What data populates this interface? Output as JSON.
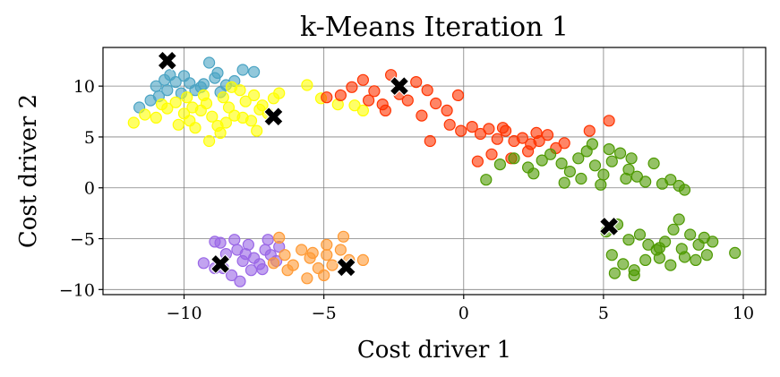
{
  "chart_data": {
    "type": "scatter",
    "title": "k-Means Iteration 1",
    "xlabel": "Cost driver 1",
    "ylabel": "Cost driver 2",
    "xlim": [
      -12.9,
      10.8
    ],
    "ylim": [
      -10.5,
      13.8
    ],
    "xticks": [
      -10,
      -5,
      0,
      5,
      10
    ],
    "yticks": [
      -10,
      -5,
      0,
      5,
      10
    ],
    "xtick_labels": [
      "−10",
      "−5",
      "0",
      "5",
      "10"
    ],
    "ytick_labels": [
      "−10",
      "−5",
      "0",
      "5",
      "10"
    ],
    "grid": true,
    "legend": "none",
    "clusters": [
      {
        "color": "#4aa3c3",
        "points": [
          [
            -11.6,
            7.9
          ],
          [
            -11.2,
            8.6
          ],
          [
            -10.9,
            9.0
          ],
          [
            -10.7,
            10.6
          ],
          [
            -10.5,
            11.1
          ],
          [
            -10.3,
            10.4
          ],
          [
            -10.0,
            11.0
          ],
          [
            -9.8,
            10.3
          ],
          [
            -9.6,
            9.6
          ],
          [
            -9.3,
            10.2
          ],
          [
            -9.1,
            12.3
          ],
          [
            -8.9,
            10.8
          ],
          [
            -8.7,
            9.4
          ],
          [
            -8.5,
            10.1
          ],
          [
            -8.2,
            10.5
          ],
          [
            -7.9,
            11.6
          ],
          [
            -7.5,
            11.4
          ],
          [
            -10.1,
            9.3
          ],
          [
            -9.4,
            9.9
          ],
          [
            -8.8,
            11.3
          ],
          [
            -11.0,
            10.0
          ],
          [
            -10.6,
            9.6
          ]
        ]
      },
      {
        "color": "#ffff00",
        "points": [
          [
            -11.8,
            6.4
          ],
          [
            -11.4,
            7.2
          ],
          [
            -11.0,
            6.9
          ],
          [
            -10.6,
            7.8
          ],
          [
            -10.3,
            8.4
          ],
          [
            -10.0,
            7.3
          ],
          [
            -9.8,
            6.6
          ],
          [
            -9.6,
            5.9
          ],
          [
            -9.4,
            7.6
          ],
          [
            -9.2,
            8.3
          ],
          [
            -9.0,
            7.0
          ],
          [
            -8.8,
            6.1
          ],
          [
            -8.6,
            8.9
          ],
          [
            -8.4,
            7.9
          ],
          [
            -8.2,
            7.1
          ],
          [
            -8.0,
            9.6
          ],
          [
            -7.8,
            8.5
          ],
          [
            -7.6,
            6.6
          ],
          [
            -7.4,
            5.6
          ],
          [
            -7.2,
            8.1
          ],
          [
            -7.0,
            7.3
          ],
          [
            -6.8,
            8.8
          ],
          [
            -6.6,
            9.3
          ],
          [
            -9.9,
            8.9
          ],
          [
            -9.3,
            9.1
          ],
          [
            -8.7,
            5.4
          ],
          [
            -8.3,
            9.9
          ],
          [
            -7.9,
            6.9
          ],
          [
            -7.5,
            9.1
          ],
          [
            -9.1,
            4.6
          ],
          [
            -10.2,
            6.2
          ],
          [
            -5.6,
            10.1
          ],
          [
            -5.1,
            8.8
          ],
          [
            -4.5,
            8.2
          ],
          [
            -3.9,
            8.1
          ],
          [
            -3.6,
            7.6
          ],
          [
            -8.5,
            6.4
          ],
          [
            -9.7,
            7.9
          ],
          [
            -10.8,
            8.2
          ],
          [
            -7.3,
            7.7
          ]
        ]
      },
      {
        "color": "#ff3300",
        "points": [
          [
            -4.9,
            8.9
          ],
          [
            -4.4,
            9.1
          ],
          [
            -4.0,
            9.9
          ],
          [
            -3.6,
            10.6
          ],
          [
            -3.2,
            9.5
          ],
          [
            -2.9,
            8.2
          ],
          [
            -2.6,
            11.1
          ],
          [
            -2.3,
            9.2
          ],
          [
            -2.0,
            8.6
          ],
          [
            -1.7,
            10.4
          ],
          [
            -1.3,
            9.6
          ],
          [
            -1.0,
            8.3
          ],
          [
            -0.6,
            7.6
          ],
          [
            -0.2,
            9.1
          ],
          [
            -2.8,
            7.6
          ],
          [
            -3.4,
            8.6
          ],
          [
            -1.5,
            7.1
          ],
          [
            -1.2,
            4.6
          ],
          [
            -0.5,
            6.2
          ],
          [
            -0.1,
            5.6
          ],
          [
            0.3,
            6.0
          ],
          [
            0.6,
            5.3
          ],
          [
            0.9,
            5.8
          ],
          [
            1.2,
            4.8
          ],
          [
            1.5,
            5.6
          ],
          [
            1.8,
            4.6
          ],
          [
            2.1,
            4.9
          ],
          [
            2.4,
            4.3
          ],
          [
            2.7,
            4.6
          ],
          [
            3.0,
            5.2
          ],
          [
            3.3,
            3.9
          ],
          [
            3.6,
            4.4
          ],
          [
            1.0,
            3.3
          ],
          [
            1.7,
            2.9
          ],
          [
            2.3,
            3.6
          ],
          [
            0.5,
            2.6
          ],
          [
            4.5,
            5.6
          ],
          [
            5.2,
            6.6
          ],
          [
            1.4,
            5.9
          ],
          [
            2.6,
            5.4
          ]
        ]
      },
      {
        "color": "#4d9900",
        "points": [
          [
            1.3,
            2.3
          ],
          [
            1.8,
            2.9
          ],
          [
            2.3,
            2.0
          ],
          [
            2.8,
            2.7
          ],
          [
            3.1,
            3.3
          ],
          [
            3.5,
            2.4
          ],
          [
            3.8,
            1.6
          ],
          [
            4.1,
            2.9
          ],
          [
            4.4,
            3.6
          ],
          [
            4.7,
            2.2
          ],
          [
            5.0,
            1.3
          ],
          [
            5.3,
            2.6
          ],
          [
            5.6,
            3.4
          ],
          [
            5.9,
            1.8
          ],
          [
            6.2,
            1.1
          ],
          [
            6.5,
            0.6
          ],
          [
            6.8,
            2.4
          ],
          [
            7.1,
            0.4
          ],
          [
            7.4,
            0.8
          ],
          [
            7.7,
            0.2
          ],
          [
            7.9,
            -0.2
          ],
          [
            4.6,
            4.3
          ],
          [
            5.2,
            3.8
          ],
          [
            5.8,
            0.9
          ],
          [
            3.6,
            0.5
          ],
          [
            4.2,
            0.9
          ],
          [
            4.9,
            0.3
          ],
          [
            0.8,
            0.8
          ],
          [
            2.5,
            1.4
          ],
          [
            6.0,
            2.9
          ],
          [
            5.1,
            -4.3
          ],
          [
            5.5,
            -3.6
          ],
          [
            5.9,
            -5.1
          ],
          [
            6.3,
            -4.6
          ],
          [
            6.6,
            -5.6
          ],
          [
            6.9,
            -6.1
          ],
          [
            7.2,
            -5.3
          ],
          [
            7.5,
            -4.1
          ],
          [
            7.8,
            -6.0
          ],
          [
            8.1,
            -4.6
          ],
          [
            8.4,
            -5.6
          ],
          [
            8.7,
            -6.6
          ],
          [
            5.3,
            -6.6
          ],
          [
            5.7,
            -7.5
          ],
          [
            6.1,
            -8.1
          ],
          [
            6.5,
            -7.1
          ],
          [
            7.0,
            -6.9
          ],
          [
            7.4,
            -7.6
          ],
          [
            7.9,
            -6.8
          ],
          [
            8.3,
            -7.1
          ],
          [
            8.6,
            -4.9
          ],
          [
            8.9,
            -5.3
          ],
          [
            9.7,
            -6.4
          ],
          [
            7.7,
            -3.1
          ],
          [
            5.4,
            -8.4
          ],
          [
            6.1,
            -8.6
          ],
          [
            7.0,
            -5.9
          ]
        ]
      },
      {
        "color": "#9966e6",
        "points": [
          [
            -9.3,
            -7.4
          ],
          [
            -8.9,
            -7.9
          ],
          [
            -8.7,
            -5.4
          ],
          [
            -8.5,
            -6.5
          ],
          [
            -8.3,
            -8.6
          ],
          [
            -8.1,
            -6.1
          ],
          [
            -7.9,
            -7.2
          ],
          [
            -7.7,
            -5.6
          ],
          [
            -7.5,
            -6.9
          ],
          [
            -7.3,
            -7.5
          ],
          [
            -7.1,
            -6.1
          ],
          [
            -6.9,
            -6.6
          ],
          [
            -6.7,
            -7.2
          ],
          [
            -8.6,
            -7.9
          ],
          [
            -8.0,
            -9.2
          ],
          [
            -7.6,
            -8.1
          ],
          [
            -7.0,
            -5.1
          ],
          [
            -6.6,
            -5.8
          ],
          [
            -8.9,
            -5.3
          ],
          [
            -8.2,
            -5.1
          ],
          [
            -7.8,
            -6.5
          ],
          [
            -7.2,
            -8.0
          ]
        ]
      },
      {
        "color": "#ff9933",
        "points": [
          [
            -6.8,
            -7.4
          ],
          [
            -6.4,
            -6.6
          ],
          [
            -6.1,
            -7.6
          ],
          [
            -5.8,
            -6.1
          ],
          [
            -5.5,
            -6.9
          ],
          [
            -5.2,
            -7.9
          ],
          [
            -4.9,
            -6.6
          ],
          [
            -4.7,
            -7.6
          ],
          [
            -4.4,
            -6.1
          ],
          [
            -4.1,
            -7.1
          ],
          [
            -6.3,
            -8.1
          ],
          [
            -5.6,
            -8.9
          ],
          [
            -5.0,
            -8.6
          ],
          [
            -6.6,
            -4.9
          ],
          [
            -4.3,
            -4.8
          ],
          [
            -3.6,
            -7.1
          ],
          [
            -4.9,
            -5.6
          ],
          [
            -5.4,
            -6.4
          ]
        ]
      }
    ],
    "centroids": [
      [
        -10.6,
        12.5
      ],
      [
        -6.8,
        7.0
      ],
      [
        -2.3,
        10.0
      ],
      [
        5.2,
        -3.8
      ],
      [
        -8.7,
        -7.5
      ],
      [
        -4.2,
        -7.8
      ]
    ]
  }
}
